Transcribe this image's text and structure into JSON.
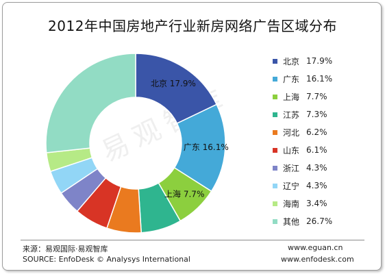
{
  "chart_data": {
    "type": "pie",
    "donut": true,
    "title": "2012年中国房地产行业新房网络广告区域分布",
    "slices": [
      {
        "label": "北京",
        "value": 17.9,
        "display": "17.9%",
        "color": "#3a55a8",
        "show_label": true
      },
      {
        "label": "广东",
        "value": 16.1,
        "display": "16.1%",
        "color": "#44a9d8",
        "show_label": true
      },
      {
        "label": "上海",
        "value": 7.7,
        "display": "7.7%",
        "color": "#8ccf3e",
        "show_label": true
      },
      {
        "label": "江苏",
        "value": 7.3,
        "display": "7.3%",
        "color": "#2fb58f",
        "show_label": false
      },
      {
        "label": "河北",
        "value": 6.2,
        "display": "6.2%",
        "color": "#ea7a1f",
        "show_label": false
      },
      {
        "label": "山东",
        "value": 6.1,
        "display": "6.1%",
        "color": "#d83425",
        "show_label": false
      },
      {
        "label": "浙江",
        "value": 4.3,
        "display": "4.3%",
        "color": "#7e84c8",
        "show_label": false
      },
      {
        "label": "辽宁",
        "value": 4.3,
        "display": "4.3%",
        "color": "#92d6f6",
        "show_label": false
      },
      {
        "label": "海南",
        "value": 3.4,
        "display": "3.4%",
        "color": "#b6ea86",
        "show_label": false
      },
      {
        "label": "其他",
        "value": 26.7,
        "display": "26.7%",
        "color": "#92dcc4",
        "show_label": false
      }
    ],
    "legend_position": "right"
  },
  "footer": {
    "source_cn": "来源：易观国际·易观智库",
    "source_en": "SOURCE: EnfoDesk © Analysys International",
    "url1": "www.eguan.cn",
    "url2": "www.enfodesk.com"
  },
  "watermark": "易观智库"
}
